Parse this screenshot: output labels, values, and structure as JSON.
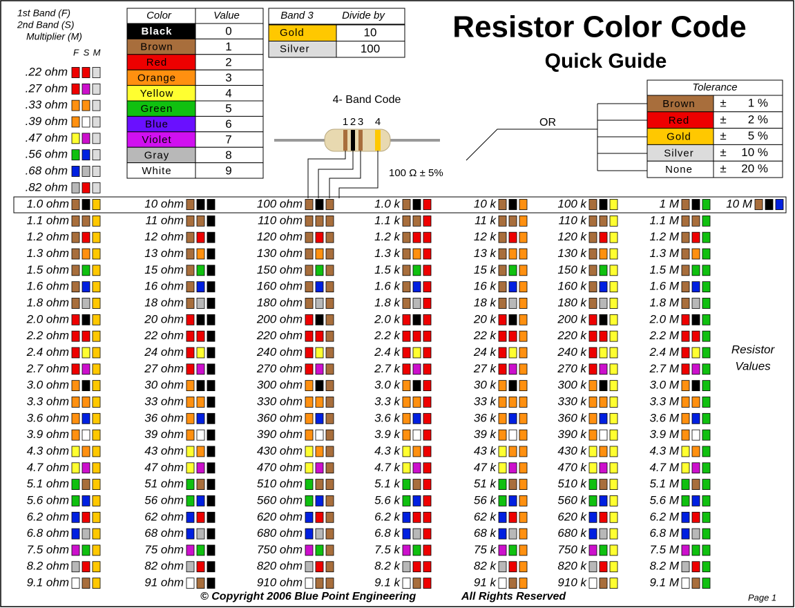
{
  "header": {
    "title": "Resistor Color Code",
    "subtitle": "Quick Guide"
  },
  "legend": {
    "lines": [
      "1st Band (F)",
      "2nd Band (S)",
      "Multiplier (M)"
    ],
    "band_letters": [
      "F",
      "S",
      "M"
    ]
  },
  "palette": {
    "Black": "#000000",
    "Brown": "#a86e3c",
    "Red": "#ee0000",
    "Orange": "#ff9010",
    "Yellow": "#ffff30",
    "Green": "#10c010",
    "Blue": "#6a10ff",
    "Violet": "#d010f0",
    "Gray": "#b8b8b8",
    "White": "#ffffff",
    "Gold": "#ffc800",
    "Silver": "#dcdcdc"
  },
  "band_palette": {
    "Blue": "#0020e0",
    "Violet": "#cc10cc"
  },
  "color_table": {
    "headers": [
      "Color",
      "Value"
    ],
    "rows": [
      [
        "Black",
        0
      ],
      [
        "Brown",
        1
      ],
      [
        "Red",
        2
      ],
      [
        "Orange",
        3
      ],
      [
        "Yellow",
        4
      ],
      [
        "Green",
        5
      ],
      [
        "Blue",
        6
      ],
      [
        "Violet",
        7
      ],
      [
        "Gray",
        8
      ],
      [
        "White",
        9
      ]
    ]
  },
  "divide_table": {
    "headers": [
      "Band 3",
      "Divide by"
    ],
    "rows": [
      [
        "Gold",
        10
      ],
      [
        "Silver",
        100
      ]
    ]
  },
  "band_code": {
    "title": "4- Band Code",
    "numbers": [
      1,
      2,
      3,
      4
    ],
    "value_text": "100 Ω ± 5%",
    "bands": [
      "Brown",
      "Black",
      "Brown",
      "Gold"
    ]
  },
  "or_label": "OR",
  "tolerance_table": {
    "header": "Tolerance",
    "rows": [
      [
        "Brown",
        "±",
        "1 %"
      ],
      [
        "Red",
        "±",
        "2 %"
      ],
      [
        "Gold",
        "±",
        "5 %"
      ],
      [
        "Silver",
        "±",
        "10 %"
      ],
      [
        "None",
        "±",
        "20 %"
      ]
    ]
  },
  "sub_ohm": {
    "labels": [
      ".22 ohm",
      ".27 ohm",
      ".33 ohm",
      ".39 ohm",
      ".47 ohm",
      ".56 ohm",
      ".68 ohm",
      ".82 ohm"
    ],
    "bands": [
      [
        "Red",
        "Red"
      ],
      [
        "Red",
        "Violet"
      ],
      [
        "Orange",
        "Orange"
      ],
      [
        "Orange",
        "White"
      ],
      [
        "Yellow",
        "Violet"
      ],
      [
        "Green",
        "Blue"
      ],
      [
        "Blue",
        "Gray"
      ],
      [
        "Gray",
        "Red"
      ]
    ],
    "multiplier": "Silver"
  },
  "digit_bands": [
    [
      "Brown",
      "Black"
    ],
    [
      "Brown",
      "Brown"
    ],
    [
      "Brown",
      "Red"
    ],
    [
      "Brown",
      "Orange"
    ],
    [
      "Brown",
      "Green"
    ],
    [
      "Brown",
      "Blue"
    ],
    [
      "Brown",
      "Gray"
    ],
    [
      "Red",
      "Black"
    ],
    [
      "Red",
      "Red"
    ],
    [
      "Red",
      "Yellow"
    ],
    [
      "Red",
      "Violet"
    ],
    [
      "Orange",
      "Black"
    ],
    [
      "Orange",
      "Orange"
    ],
    [
      "Orange",
      "Blue"
    ],
    [
      "Orange",
      "White"
    ],
    [
      "Yellow",
      "Orange"
    ],
    [
      "Yellow",
      "Violet"
    ],
    [
      "Green",
      "Brown"
    ],
    [
      "Green",
      "Blue"
    ],
    [
      "Blue",
      "Red"
    ],
    [
      "Blue",
      "Gray"
    ],
    [
      "Violet",
      "Green"
    ],
    [
      "Gray",
      "Red"
    ],
    [
      "White",
      "Brown"
    ]
  ],
  "columns": [
    {
      "multiplier": "Gold",
      "labels": [
        "1.0 ohm",
        "1.1 ohm",
        "1.2 ohm",
        "1.3 ohm",
        "1.5 ohm",
        "1.6 ohm",
        "1.8 ohm",
        "2.0 ohm",
        "2.2 ohm",
        "2.4 ohm",
        "2.7 ohm",
        "3.0 ohm",
        "3.3 ohm",
        "3.6 ohm",
        "3.9 ohm",
        "4.3 ohm",
        "4.7 ohm",
        "5.1 ohm",
        "5.6 ohm",
        "6.2 ohm",
        "6.8 ohm",
        "7.5 ohm",
        "8.2 ohm",
        "9.1 ohm"
      ]
    },
    {
      "multiplier": "Black",
      "labels": [
        "10 ohm",
        "11 ohm",
        "12 ohm",
        "13 ohm",
        "15 ohm",
        "16 ohm",
        "18 ohm",
        "20 ohm",
        "22 ohm",
        "24 ohm",
        "27 ohm",
        "30 ohm",
        "33 ohm",
        "36 ohm",
        "39 ohm",
        "43 ohm",
        "47 ohm",
        "51 ohm",
        "56 ohm",
        "62 ohm",
        "68 ohm",
        "75 ohm",
        "82 ohm",
        "91 ohm"
      ]
    },
    {
      "multiplier": "Brown",
      "labels": [
        "100 ohm",
        "110 ohm",
        "120 ohm",
        "130 ohm",
        "150 ohm",
        "160 ohm",
        "180 ohm",
        "200 ohm",
        "220 ohm",
        "240 ohm",
        "270 ohm",
        "300 ohm",
        "330 ohm",
        "360 ohm",
        "390 ohm",
        "430 ohm",
        "470 ohm",
        "510 ohm",
        "560 ohm",
        "620 ohm",
        "680 ohm",
        "750 ohm",
        "820 ohm",
        "910 ohm"
      ]
    },
    {
      "multiplier": "Red",
      "labels": [
        "1.0 k",
        "1.1 k",
        "1.2 k",
        "1.3 k",
        "1.5 k",
        "1.6 k",
        "1.8 k",
        "2.0 k",
        "2.2 k",
        "2.4 k",
        "2.7 k",
        "3.0 k",
        "3.3 k",
        "3.6 k",
        "3.9 k",
        "4.3 k",
        "4.7 k",
        "5.1 k",
        "5.6 k",
        "6.2 k",
        "6.8 k",
        "7.5 k",
        "8.2 k",
        "9.1 k"
      ]
    },
    {
      "multiplier": "Orange",
      "labels": [
        "10 k",
        "11 k",
        "12 k",
        "13 k",
        "15 k",
        "16 k",
        "18 k",
        "20 k",
        "22 k",
        "24 k",
        "27 k",
        "30 k",
        "33 k",
        "36 k",
        "39 k",
        "43 k",
        "47 k",
        "51 k",
        "56 k",
        "62 k",
        "68 k",
        "75 k",
        "82 k",
        "91 k"
      ]
    },
    {
      "multiplier": "Yellow",
      "labels": [
        "100 k",
        "110 k",
        "120 k",
        "130 k",
        "150 k",
        "160 k",
        "180 k",
        "200 k",
        "220 k",
        "240 k",
        "270 k",
        "300 k",
        "330 k",
        "360 k",
        "390 k",
        "430 k",
        "470 k",
        "510 k",
        "560 k",
        "620 k",
        "680 k",
        "750 k",
        "820 k",
        "910 k"
      ]
    },
    {
      "multiplier": "Green",
      "labels": [
        "1 M",
        "1.1 M",
        "1.2 M",
        "1.3 M",
        "1.5 M",
        "1.6 M",
        "1.8 M",
        "2.0 M",
        "2.2 M",
        "2.4 M",
        "2.7 M",
        "3.0 M",
        "3.3 M",
        "3.6 M",
        "3.9 M",
        "4.3 M",
        "4.7 M",
        "5.1 M",
        "5.6 M",
        "6.2 M",
        "6.8 M",
        "7.5 M",
        "8.2 M",
        "9.1 M"
      ]
    },
    {
      "multiplier": "Blue",
      "labels": [
        "10 M"
      ]
    }
  ],
  "side_note": [
    "Resistor",
    "Values"
  ],
  "footer": {
    "copyright": "© Copyright  2006 Blue Point Engineering",
    "rights": "All Rights Reserved",
    "page": "Page 1"
  }
}
